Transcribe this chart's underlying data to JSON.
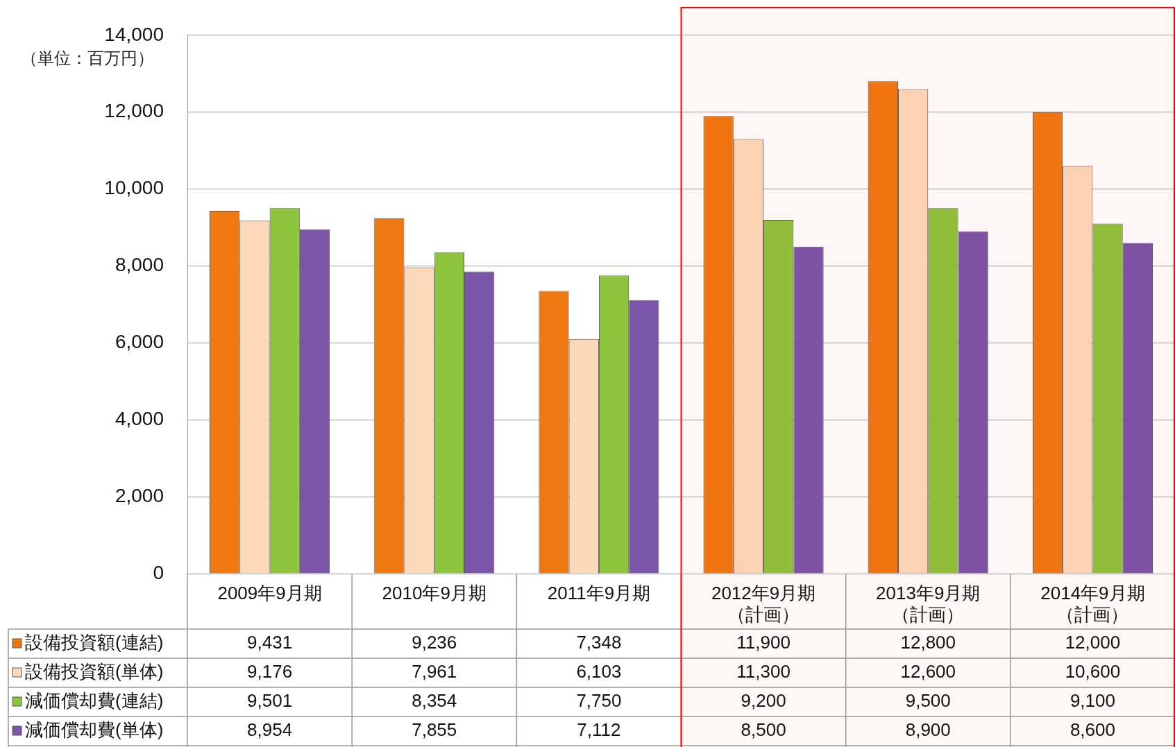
{
  "chart_data": {
    "type": "bar",
    "ylabel": "（単位：百万円）",
    "categories": [
      "2009年9月期",
      "2010年9月期",
      "2011年9月期",
      "2012年9月期（計画）",
      "2013年9月期（計画）",
      "2014年9月期（計画）"
    ],
    "series": [
      {
        "name": "設備投資額(連結)",
        "color": "#f07810",
        "values": [
          9431,
          9236,
          7348,
          11900,
          12800,
          12000
        ],
        "value_labels": [
          "9,431",
          "9,236",
          "7,348",
          "11,900",
          "12,800",
          "12,000"
        ]
      },
      {
        "name": "設備投資額(単体)",
        "color": "#fcd9b8",
        "values": [
          9176,
          7961,
          6103,
          11300,
          12600,
          10600
        ],
        "value_labels": [
          "9,176",
          "7,961",
          "6,103",
          "11,300",
          "12,600",
          "10,600"
        ]
      },
      {
        "name": "減価償却費(連結)",
        "color": "#8cc43c",
        "values": [
          9501,
          8354,
          7750,
          9200,
          9500,
          9100
        ],
        "value_labels": [
          "9,501",
          "8,354",
          "7,750",
          "9,200",
          "9,500",
          "9,100"
        ]
      },
      {
        "name": "減価償却費(単体)",
        "color": "#7a55a8",
        "values": [
          8954,
          7855,
          7112,
          8500,
          8900,
          8600
        ],
        "value_labels": [
          "8,954",
          "7,855",
          "7,112",
          "8,500",
          "8,900",
          "8,600"
        ]
      }
    ],
    "ylim": [
      0,
      14000
    ],
    "yticks": [
      0,
      {
        "value": 2000,
        "label": "2,000"
      },
      {
        "value": 4000,
        "label": "4,000"
      },
      {
        "value": 6000,
        "label": "6,000"
      },
      {
        "value": 8000,
        "label": "8,000"
      },
      {
        "value": 10000,
        "label": "10,000"
      },
      {
        "value": 12000,
        "label": "12,000"
      },
      {
        "value": 14000,
        "label": "14,000"
      }
    ],
    "grid": "y",
    "legend": "bottom",
    "bands": [
      {
        "axis": "x",
        "from": "2012年9月期（計画）",
        "to": "2014年9月期（計画）",
        "color": "#ff0000"
      }
    ]
  }
}
